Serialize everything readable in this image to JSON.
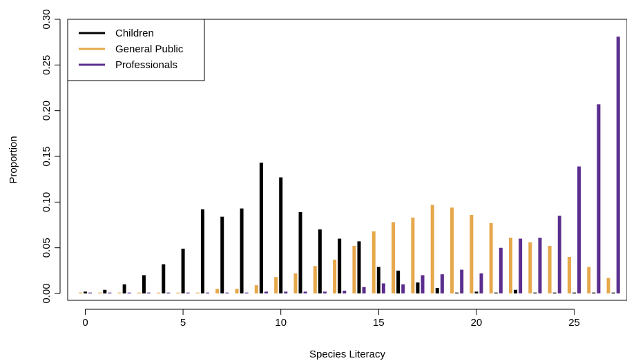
{
  "chart_data": {
    "type": "bar",
    "xlabel": "Species Literacy",
    "ylabel": "Proportion",
    "xlim": [
      -0.9,
      27.7
    ],
    "ylim": [
      -0.0075,
      0.3
    ],
    "x_ticks": [
      0,
      5,
      10,
      15,
      20,
      25
    ],
    "y_ticks": [
      "0.00",
      "0.05",
      "0.10",
      "0.15",
      "0.20",
      "0.25",
      "0.30"
    ],
    "grid": false,
    "legend_position": "top-left",
    "categories": [
      0,
      1,
      2,
      3,
      4,
      5,
      6,
      7,
      8,
      9,
      10,
      11,
      12,
      13,
      14,
      15,
      16,
      17,
      18,
      19,
      20,
      21,
      22,
      23,
      24,
      25,
      26,
      27
    ],
    "series": [
      {
        "name": "Children",
        "color": "#000000",
        "offset": 0,
        "values": [
          0.002,
          0.004,
          0.01,
          0.02,
          0.032,
          0.049,
          0.092,
          0.084,
          0.093,
          0.143,
          0.127,
          0.089,
          0.07,
          0.06,
          0.057,
          0.029,
          0.025,
          0.012,
          0.006,
          0.001,
          0.002,
          0.001,
          0.004,
          0.001,
          0.001,
          0.001,
          0.001,
          0.001
        ]
      },
      {
        "name": "General Public",
        "color": "#E6A84B",
        "offset": -0.25,
        "values": [
          0.001,
          0.001,
          0.001,
          0.001,
          0.001,
          0.001,
          0.001,
          0.005,
          0.005,
          0.009,
          0.018,
          0.022,
          0.03,
          0.037,
          0.052,
          0.068,
          0.078,
          0.083,
          0.097,
          0.094,
          0.086,
          0.077,
          0.061,
          0.056,
          0.052,
          0.04,
          0.029,
          0.017
        ]
      },
      {
        "name": "Professionals",
        "color": "#5B2E8E",
        "offset": 0.25,
        "values": [
          0.001,
          0.001,
          0.001,
          0.001,
          0.001,
          0.001,
          0.001,
          0.001,
          0.001,
          0.002,
          0.002,
          0.002,
          0.002,
          0.003,
          0.007,
          0.011,
          0.01,
          0.02,
          0.021,
          0.026,
          0.022,
          0.05,
          0.06,
          0.061,
          0.085,
          0.139,
          0.207,
          0.281
        ]
      }
    ]
  }
}
